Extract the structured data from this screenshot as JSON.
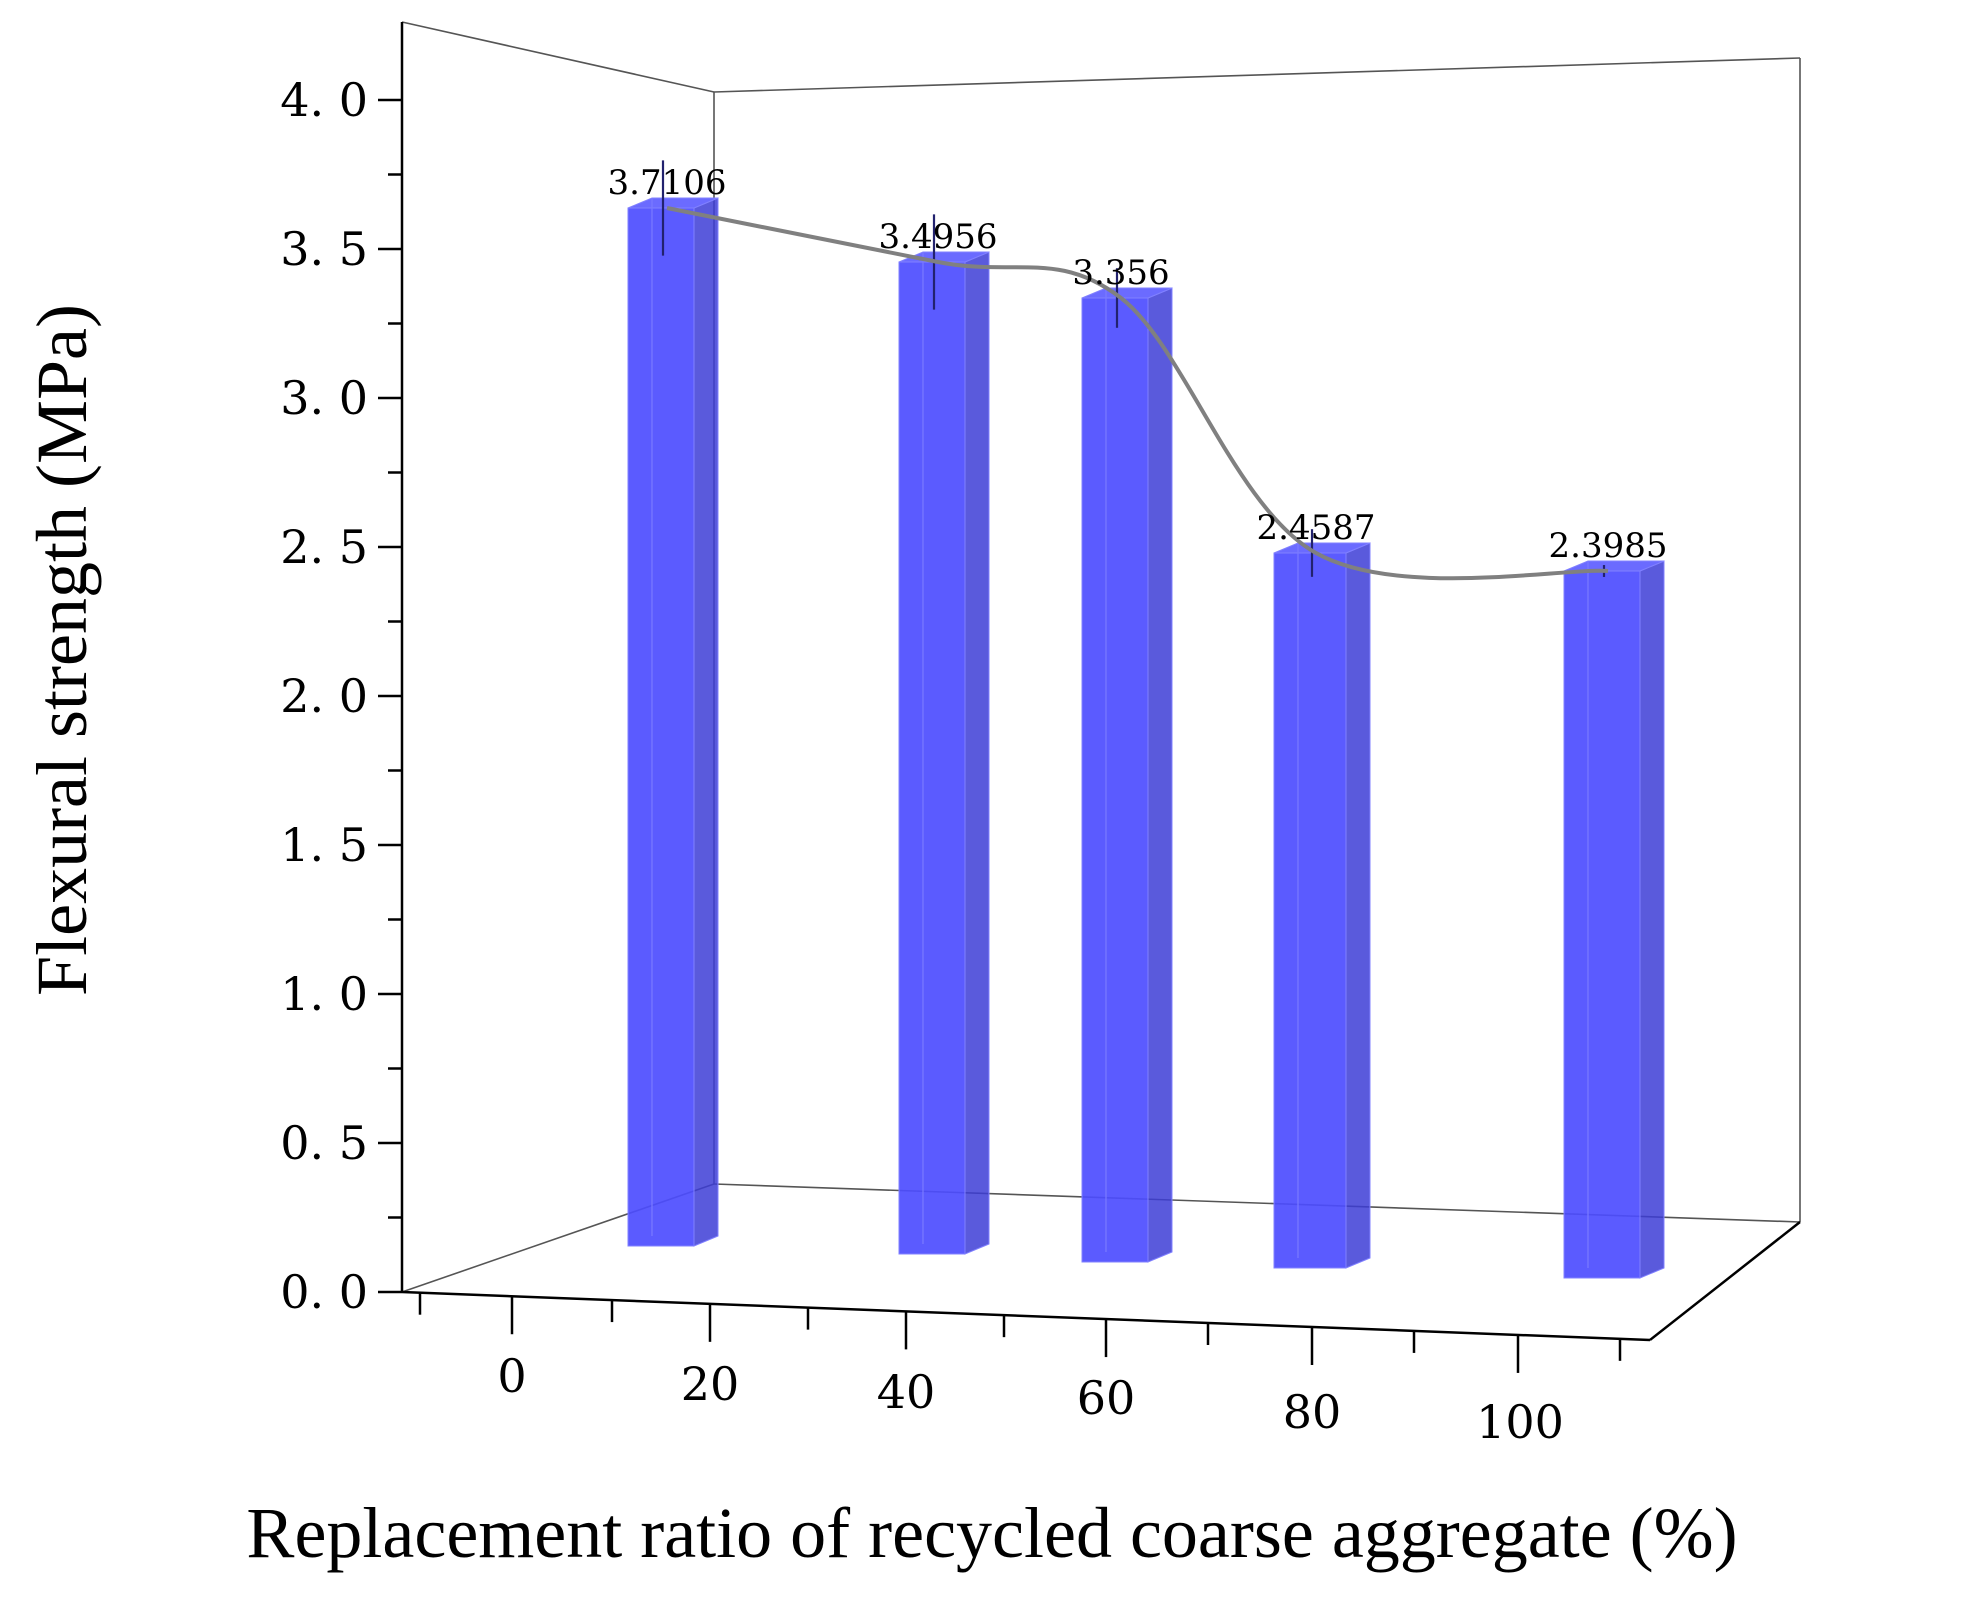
{
  "chart_data": {
    "type": "bar",
    "title": "",
    "xlabel": "Replacement ratio of recycled coarse aggregate (%)",
    "ylabel": "Flexural strength (MPa)",
    "x_tick_labels": [
      "0",
      "20",
      "40",
      "60",
      "80",
      "100"
    ],
    "y_tick_labels": [
      "0. 0",
      "0. 5",
      "1. 0",
      "1. 5",
      "2. 0",
      "2. 5",
      "3. 0",
      "3. 5",
      "4. 0"
    ],
    "ylim": [
      0,
      4.2
    ],
    "categories": [
      "0",
      "20",
      "40",
      "60",
      "80"
    ],
    "values": [
      3.7106,
      3.4956,
      3.356,
      2.4587,
      2.3985
    ],
    "data_labels": [
      "3.7106",
      "3.4956",
      "3.356",
      "2.4587",
      "2.3985"
    ],
    "error_bars": [
      0.16,
      0.16,
      0.1,
      0.08,
      0.02
    ],
    "trend_line": true,
    "grid": false,
    "style": "3d",
    "colors": {
      "bar": "#4d4dff",
      "bar_side": "#3d3dd6",
      "bar_edge": "#8080ff",
      "trend": "#808080",
      "axis": "#000000"
    }
  }
}
